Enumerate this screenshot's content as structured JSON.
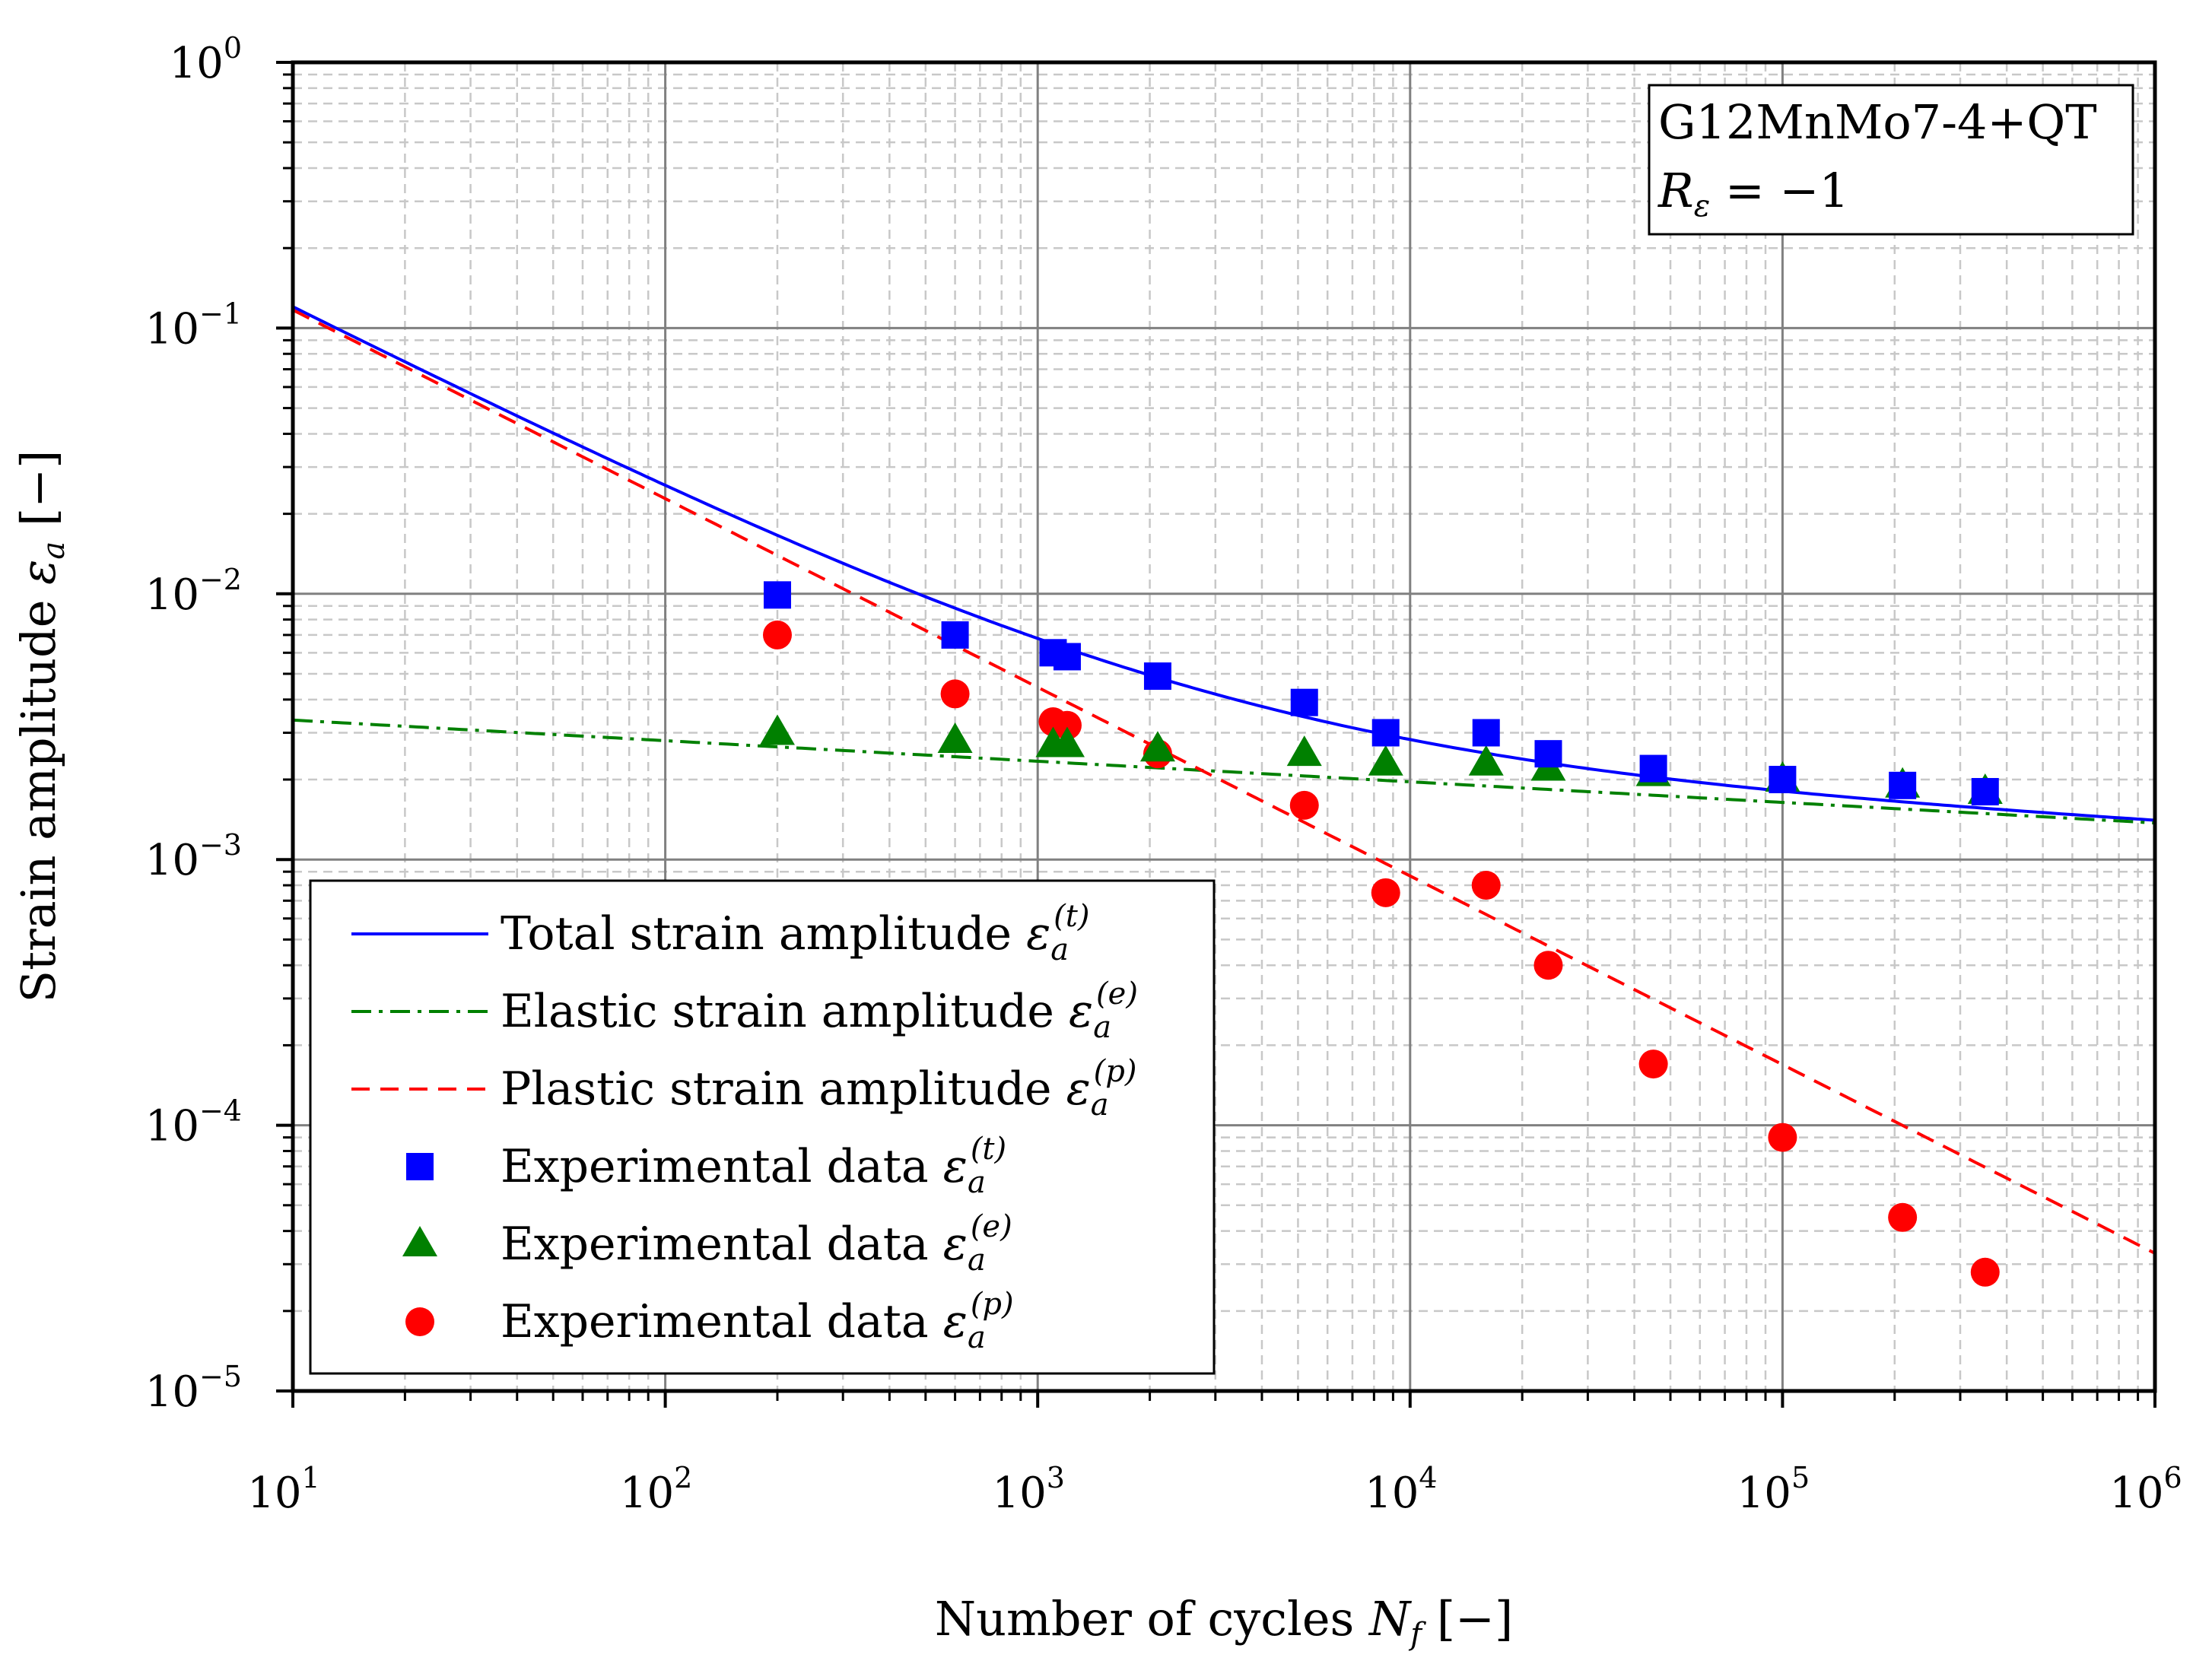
{
  "chart_data": {
    "type": "scatter+line",
    "title": "",
    "xscale": "log",
    "yscale": "log",
    "xlim": [
      10,
      1000000
    ],
    "ylim": [
      1e-05,
      1
    ],
    "xlabel": {
      "pre": "Number of cycles ",
      "sym": "N",
      "sub": "f",
      "post": " [−]"
    },
    "ylabel": {
      "pre": "Strain amplitude ",
      "sym": "ε",
      "sub": "a",
      "post": " [−]"
    },
    "grid": true,
    "x_ticks": [
      {
        "base": "10",
        "exp": "1",
        "value": 10
      },
      {
        "base": "10",
        "exp": "2",
        "value": 100
      },
      {
        "base": "10",
        "exp": "3",
        "value": 1000
      },
      {
        "base": "10",
        "exp": "4",
        "value": 10000
      },
      {
        "base": "10",
        "exp": "5",
        "value": 100000
      },
      {
        "base": "10",
        "exp": "6",
        "value": 1000000
      }
    ],
    "y_ticks": [
      {
        "base": "10",
        "exp": "0",
        "value": 1
      },
      {
        "base": "10",
        "exp": "−1",
        "value": 0.1
      },
      {
        "base": "10",
        "exp": "−2",
        "value": 0.01
      },
      {
        "base": "10",
        "exp": "−3",
        "value": 0.001
      },
      {
        "base": "10",
        "exp": "−4",
        "value": 0.0001
      },
      {
        "base": "10",
        "exp": "−5",
        "value": 1e-05
      }
    ],
    "annotation": {
      "line1": "G12MnMo7-4+QT",
      "line2_sym": "R",
      "line2_sub": "ε",
      "line2_rest": " = −1"
    },
    "legend_position": "lower-left",
    "curves": [
      {
        "name": "total",
        "legend": "Total strain amplitude ",
        "sup": "(t)",
        "color": "#0000ff",
        "style": "solid",
        "elastic": {
          "coef": 0.004,
          "exp": -0.0774
        },
        "plastic": {
          "coef": 0.6,
          "exp": -0.71
        }
      },
      {
        "name": "elastic",
        "legend": "Elastic strain amplitude ",
        "sup": "(e)",
        "color": "#008000",
        "style": "dashdot",
        "coef": 0.004,
        "exp": -0.0774
      },
      {
        "name": "plastic",
        "legend": "Plastic strain amplitude ",
        "sup": "(p)",
        "color": "#ff0000",
        "style": "dashed",
        "coef": 0.6,
        "exp": -0.71
      }
    ],
    "series": [
      {
        "name": "exp_total",
        "legend": "Experimental data ",
        "sup": "(t)",
        "marker": "square",
        "color": "#0000ff",
        "x": [
          200,
          600,
          1100,
          1200,
          2100,
          5200,
          8600,
          16000,
          23500,
          45000,
          100000,
          210000,
          350000
        ],
        "y": [
          0.0099,
          0.007,
          0.006,
          0.0058,
          0.0049,
          0.0039,
          0.003,
          0.003,
          0.0025,
          0.0022,
          0.002,
          0.0019,
          0.0018
        ]
      },
      {
        "name": "exp_elastic",
        "legend": "Experimental data ",
        "sup": "(e)",
        "marker": "triangle",
        "color": "#008000",
        "x": [
          200,
          600,
          1100,
          1200,
          2100,
          5200,
          8600,
          16000,
          23500,
          45000,
          100000,
          210000,
          350000
        ],
        "y": [
          0.003,
          0.0028,
          0.0027,
          0.0027,
          0.0026,
          0.0025,
          0.0023,
          0.0023,
          0.0022,
          0.0021,
          0.002,
          0.0019,
          0.0018
        ]
      },
      {
        "name": "exp_plastic",
        "legend": "Experimental data ",
        "sup": "(p)",
        "marker": "circle",
        "color": "#ff0000",
        "x": [
          200,
          600,
          1100,
          1200,
          2100,
          5200,
          8600,
          16000,
          23500,
          45000,
          100000,
          210000,
          350000
        ],
        "y": [
          0.007,
          0.0042,
          0.0033,
          0.0032,
          0.0025,
          0.0016,
          0.00075,
          0.0008,
          0.0004,
          0.00017,
          9e-05,
          4.5e-05,
          2.8e-05
        ]
      }
    ],
    "legend_symbol": {
      "sym": "ε",
      "sub": "a"
    }
  }
}
